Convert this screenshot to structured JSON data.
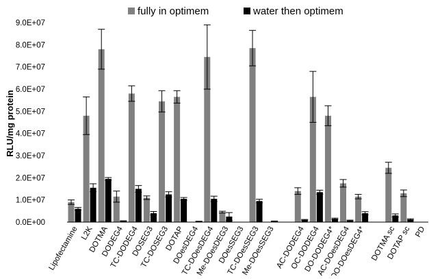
{
  "chart_data": {
    "type": "bar",
    "title": "",
    "xlabel": "",
    "ylabel": "RLU/mg protein",
    "ylim": [
      0,
      90000000
    ],
    "yticks": [
      "0.0E+00",
      "1.0E+07",
      "2.0E+07",
      "3.0E+07",
      "4.0E+07",
      "5.0E+07",
      "6.0E+07",
      "7.0E+07",
      "8.0E+07",
      "9.0E+07"
    ],
    "legend_position": "top",
    "grid": false,
    "categories": [
      "Lipofectamine",
      "L2K",
      "DOTMA",
      "DODEG4",
      "TC-DODEG4",
      "DOSEG3",
      "TC-DOSEG3",
      "DOTAP",
      "DOesDEG4",
      "TC-DOesDEG4",
      "Me-DOesDEG3",
      "DOesSEG3",
      "TC-DOesSEG3",
      "Me-DOesSEG3",
      "",
      "AC-DODEG4",
      "OC-DODEG4",
      "DO-DODEG4*",
      "AC-DOesDEG4",
      "DO-DOesDEG4*",
      "",
      "DOTMA sc",
      "DOTAP sc",
      "PD"
    ],
    "series": [
      {
        "name": "fully in optimem",
        "color": "#808080",
        "values": [
          9000000,
          48000000,
          78000000,
          11500000,
          58000000,
          11000000,
          54500000,
          56500000,
          0,
          74500000,
          4500000,
          0,
          78500000,
          0,
          null,
          14000000,
          56500000,
          48000000,
          17500000,
          11500000,
          null,
          24500000,
          13000000,
          0
        ],
        "errors": [
          1000000,
          8500000,
          9000000,
          2500000,
          3500000,
          800000,
          4800000,
          2800000,
          0,
          14500000,
          400000,
          0,
          8000000,
          0,
          null,
          1500000,
          11500000,
          4500000,
          1700000,
          1000000,
          null,
          2500000,
          1500000,
          0
        ]
      },
      {
        "name": "water then optimem",
        "color": "#000000",
        "values": [
          6000000,
          15500000,
          19500000,
          500000,
          15000000,
          4000000,
          12500000,
          10500000,
          300000,
          10500000,
          2500000,
          0,
          9500000,
          400000,
          null,
          1000000,
          13500000,
          1500000,
          700000,
          4000000,
          null,
          3000000,
          1200000,
          0
        ],
        "errors": [
          600000,
          1800000,
          600000,
          100000,
          1500000,
          800000,
          1200000,
          600000,
          100000,
          1200000,
          1800000,
          0,
          800000,
          100000,
          null,
          200000,
          900000,
          300000,
          200000,
          700000,
          null,
          700000,
          300000,
          0
        ]
      }
    ]
  }
}
